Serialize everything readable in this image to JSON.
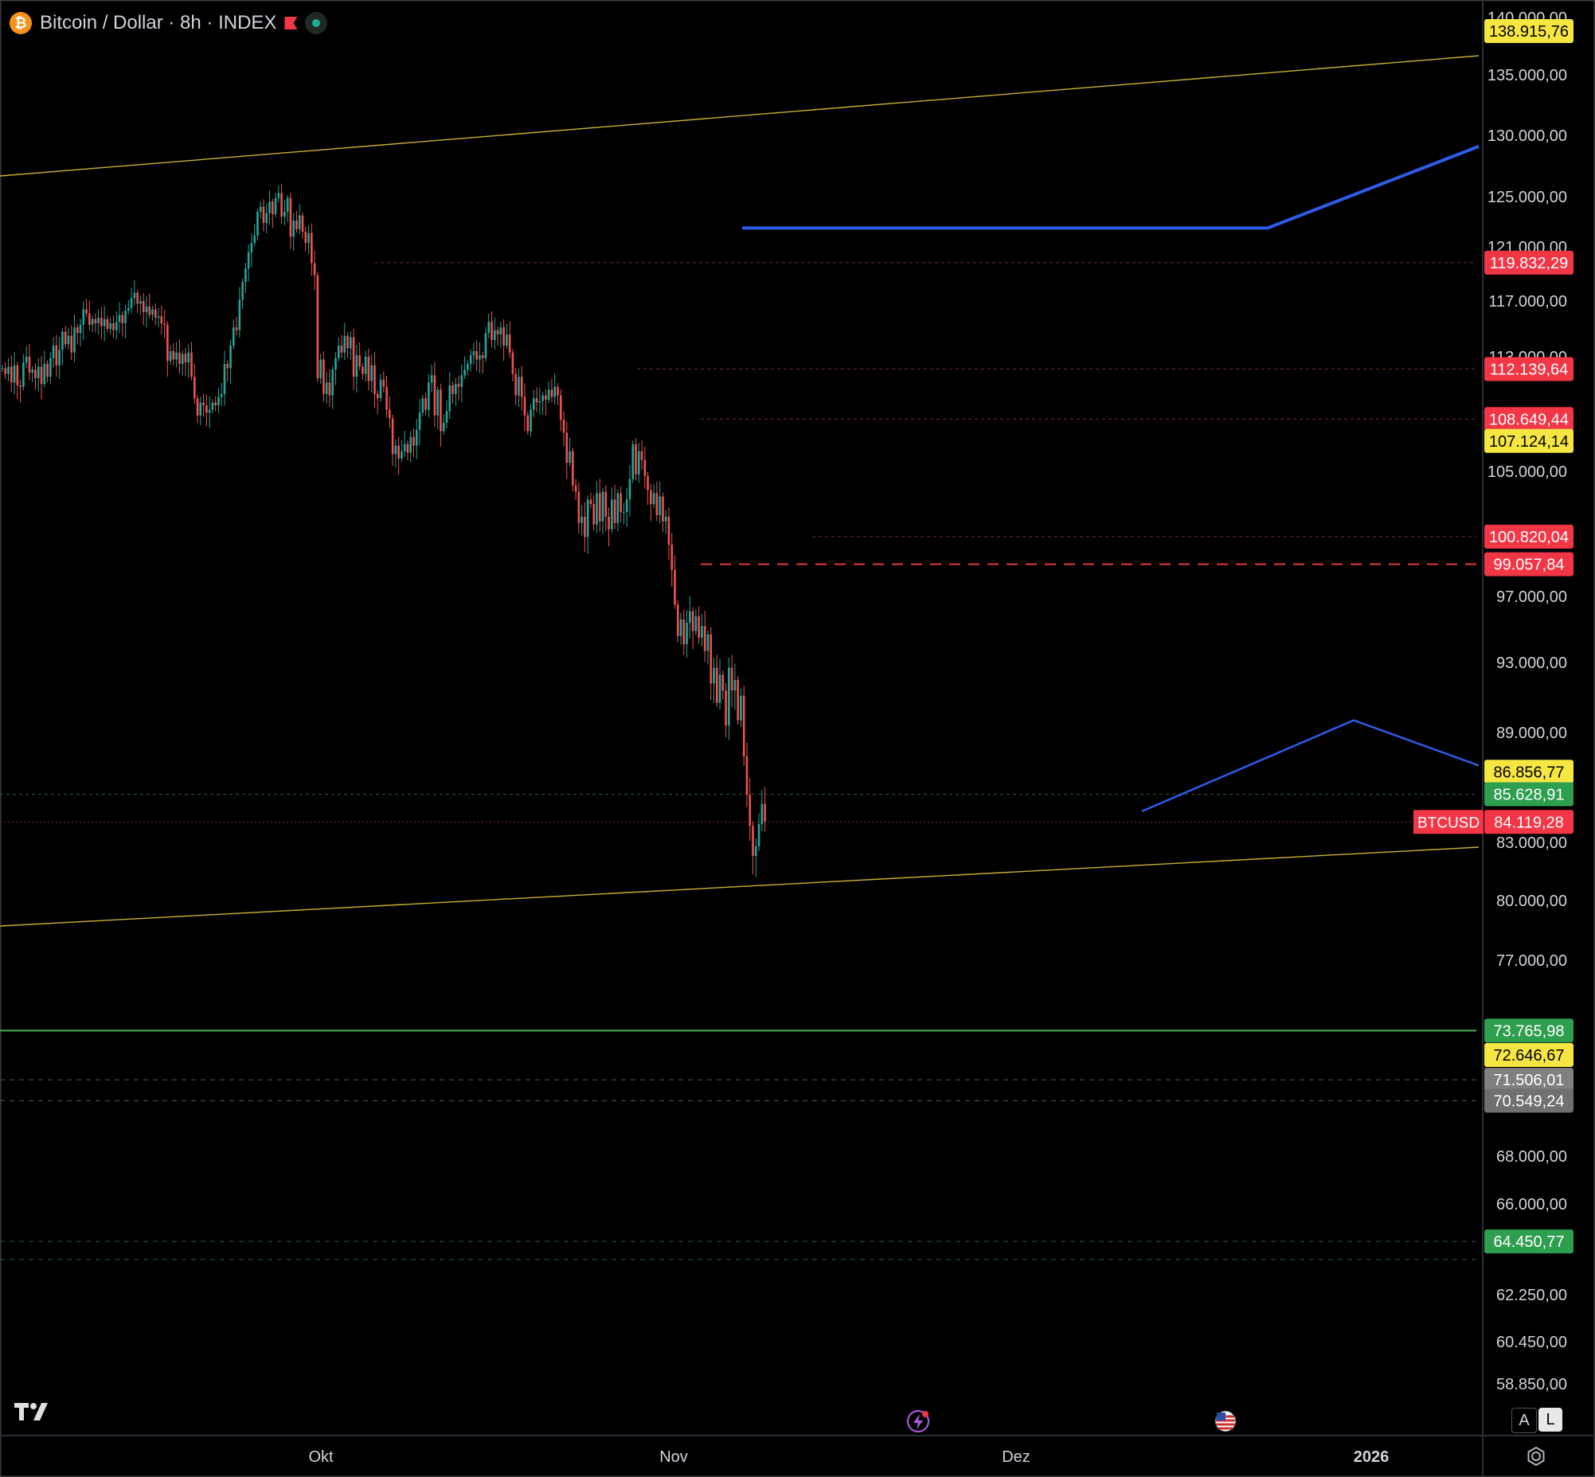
{
  "header": {
    "symbol_title": "Bitcoin / Dollar · 8h · INDEX",
    "coin_glyph": "₿",
    "icons": [
      "bitcoin-icon",
      "red-flag-icon",
      "market-open-dot-icon"
    ]
  },
  "chart_data": {
    "type": "candlestick",
    "symbol": "BTCUSD",
    "interval": "8h",
    "y_ticks": [
      "140.000,00",
      "135.000,00",
      "130.000,00",
      "125.000,00",
      "121.000,00",
      "117.000,00",
      "113.000,00",
      "105.000,00",
      "97.000,00",
      "93.000,00",
      "89.000,00",
      "83.000,00",
      "80.000,00",
      "77.000,00",
      "68.000,00",
      "66.000,00",
      "62.250,00",
      "60.450,00",
      "58.850,00"
    ],
    "x_ticks": [
      "Okt",
      "Nov",
      "Dez",
      "2026"
    ],
    "price_labels": [
      {
        "value": "138.915,76",
        "color": "#f5e642"
      },
      {
        "value": "119.832,29",
        "color": "#f23645"
      },
      {
        "value": "112.139,64",
        "color": "#f23645"
      },
      {
        "value": "108.649,44",
        "color": "#f23645"
      },
      {
        "value": "107.124,14",
        "color": "#f5e642"
      },
      {
        "value": "100.820,04",
        "color": "#f23645"
      },
      {
        "value": "99.057,84",
        "color": "#f23645"
      },
      {
        "value": "86.856,77",
        "color": "#f5e642"
      },
      {
        "value": "85.628,91",
        "color": "#2e9e4f"
      },
      {
        "value": "84.119,28",
        "color": "#f23645"
      },
      {
        "value": "73.765,98",
        "color": "#2e9e4f"
      },
      {
        "value": "72.646,67",
        "color": "#f5e642"
      },
      {
        "value": "71.506,01",
        "color": "#808080"
      },
      {
        "value": "70.549,24",
        "color": "#707070"
      },
      {
        "value": "64.450,77",
        "color": "#2e9e4f"
      }
    ],
    "last_price_tag": "BTCUSD",
    "candles_close": [
      112200,
      111800,
      112300,
      111200,
      112400,
      111000,
      110900,
      112600,
      113000,
      111900,
      112100,
      111500,
      112300,
      111100,
      112500,
      111600,
      112900,
      113800,
      112400,
      113500,
      114800,
      113900,
      114500,
      113300,
      115100,
      114700,
      115300,
      116400,
      116100,
      115300,
      115700,
      115400,
      115800,
      115200,
      115700,
      115000,
      115400,
      114900,
      115500,
      116000,
      115400,
      116300,
      116500,
      117200,
      117600,
      116800,
      117000,
      116200,
      116600,
      116000,
      116400,
      115800,
      115900,
      115400,
      115300,
      112700,
      113400,
      112800,
      113300,
      112500,
      113200,
      112600,
      113300,
      111600,
      110100,
      108900,
      109800,
      109600,
      109100,
      109300,
      109800,
      109600,
      110200,
      110400,
      112500,
      112200,
      113800,
      115100,
      114900,
      117100,
      118400,
      119400,
      120600,
      121300,
      121900,
      123800,
      124200,
      122900,
      123700,
      124600,
      123600,
      124900,
      125300,
      123400,
      123800,
      124900,
      121800,
      123100,
      122400,
      123500,
      122200,
      121300,
      122100,
      119800,
      118900,
      111500,
      112800,
      110400,
      111200,
      110300,
      112100,
      112900,
      113800,
      113300,
      114500,
      113600,
      114400,
      111600,
      113100,
      112300,
      111800,
      113000,
      111300,
      112400,
      110400,
      110100,
      111400,
      110900,
      109300,
      108700,
      106200,
      106800,
      105900,
      106400,
      106900,
      106300,
      107400,
      106800,
      107900,
      109100,
      110100,
      109300,
      111200,
      111700,
      108900,
      110700,
      107800,
      108400,
      109200,
      111000,
      110400,
      111100,
      110900,
      111700,
      112100,
      112500,
      113100,
      113400,
      112800,
      113100,
      112900,
      114700,
      115500,
      114200,
      114900,
      114600,
      115100,
      113800,
      114600,
      113300,
      111800,
      110300,
      111600,
      110200,
      108900,
      107800,
      109300,
      110100,
      109800,
      109900,
      110300,
      110000,
      110700,
      110200,
      110900,
      110300,
      108600,
      107700,
      105600,
      106400,
      104100,
      103700,
      101700,
      102100,
      100800,
      103200,
      102900,
      101600,
      103600,
      101800,
      103700,
      102100,
      101300,
      103200,
      101700,
      103600,
      102400,
      102400,
      103200,
      104500,
      106900,
      104800,
      106400,
      105800,
      104700,
      103800,
      102900,
      103600,
      102200,
      103400,
      101800,
      102100,
      100300,
      98700,
      96500,
      94600,
      95600,
      94100,
      95400,
      96100,
      94900,
      95800,
      94500,
      95200,
      93700,
      94700,
      91800,
      92700,
      90700,
      92300,
      91400,
      89400,
      92700,
      91400,
      92000,
      89700,
      91100,
      87700,
      85600,
      83900,
      82300,
      82800,
      84000,
      85100,
      84119.28
    ],
    "horizontal_levels": [
      119832.29,
      112139.64,
      108649.44,
      100820.04,
      99057.84,
      85628.91,
      84119.28,
      73765.98,
      71506.01,
      70549.24,
      64450.77,
      63700
    ],
    "trendlines": [
      {
        "from": [
          "Sep",
          "126000"
        ],
        "to": [
          "2026",
          "136000"
        ],
        "color": "#c9b037"
      },
      {
        "from": [
          "Sep",
          "80300"
        ],
        "to": [
          "2026",
          "82600"
        ],
        "color": "#c9b037"
      }
    ],
    "projection_paths": [
      {
        "color": "#2f5be8",
        "points": [
          122500,
          122500,
          128200
        ]
      },
      {
        "color": "#2f5be8",
        "points": [
          84700,
          89700,
          87200
        ]
      }
    ],
    "grid": false
  }
}
